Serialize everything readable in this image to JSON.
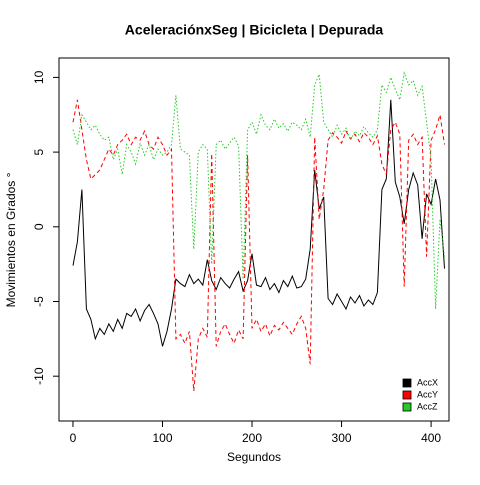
{
  "chart_data": {
    "type": "line",
    "title": "AceleraciónxSeg | Bicicleta | Depurada",
    "xlabel": "Segundos",
    "ylabel": "Movimientos en Grados °",
    "x": [
      0,
      5,
      10,
      15,
      20,
      25,
      30,
      35,
      40,
      45,
      50,
      55,
      60,
      65,
      70,
      75,
      80,
      85,
      90,
      95,
      100,
      105,
      110,
      115,
      120,
      125,
      130,
      135,
      140,
      145,
      150,
      155,
      160,
      165,
      170,
      175,
      180,
      185,
      190,
      195,
      200,
      205,
      210,
      215,
      220,
      225,
      230,
      235,
      240,
      245,
      250,
      255,
      260,
      265,
      270,
      275,
      280,
      285,
      290,
      295,
      300,
      305,
      310,
      315,
      320,
      325,
      330,
      335,
      340,
      345,
      350,
      355,
      360,
      365,
      370,
      375,
      380,
      385,
      390,
      395,
      400,
      405,
      410,
      415
    ],
    "series": [
      {
        "name": "AccX",
        "color": "#000000",
        "linestyle": "solid",
        "values": [
          -2.6,
          -1.0,
          2.5,
          -5.5,
          -6.2,
          -7.5,
          -6.8,
          -7.2,
          -6.5,
          -7.0,
          -6.2,
          -6.8,
          -5.8,
          -6.0,
          -5.5,
          -6.3,
          -5.6,
          -5.2,
          -5.8,
          -6.5,
          -8.0,
          -7.0,
          -5.5,
          -3.5,
          -3.8,
          -4.0,
          -3.2,
          -3.8,
          -3.5,
          -3.9,
          -2.2,
          -3.6,
          -4.2,
          -3.4,
          -3.8,
          -4.1,
          -3.5,
          -3.0,
          -4.3,
          -3.6,
          -1.8,
          -3.9,
          -4.0,
          -3.4,
          -4.2,
          -3.8,
          -4.4,
          -3.6,
          -4.0,
          -3.3,
          -4.1,
          -4.0,
          -3.5,
          -1.5,
          3.8,
          1.2,
          2.0,
          -4.8,
          -5.2,
          -4.5,
          -5.0,
          -5.5,
          -4.7,
          -5.1,
          -4.6,
          -5.3,
          -4.9,
          -5.2,
          -4.4,
          2.5,
          3.2,
          8.5,
          3.0,
          2.0,
          0.2,
          2.5,
          3.6,
          2.8,
          -0.8,
          2.2,
          1.5,
          3.2,
          1.8,
          -2.8
        ]
      },
      {
        "name": "AccY",
        "color": "#ff0000",
        "linestyle": "dashed",
        "values": [
          7.0,
          8.5,
          6.5,
          4.5,
          3.2,
          3.5,
          3.8,
          4.5,
          5.2,
          4.8,
          5.5,
          5.8,
          6.2,
          5.5,
          6.0,
          5.8,
          6.4,
          5.5,
          5.2,
          6.0,
          5.5,
          4.8,
          5.2,
          -7.5,
          -7.2,
          -7.8,
          -7.0,
          -11.0,
          -7.5,
          -6.8,
          -7.4,
          4.9,
          -8.0,
          -7.0,
          -6.5,
          -7.2,
          -7.8,
          -6.9,
          -7.5,
          4.8,
          -6.8,
          -6.2,
          -7.0,
          -6.5,
          -7.3,
          -6.6,
          -6.9,
          -6.4,
          -6.8,
          -7.2,
          -6.5,
          -6.0,
          -6.8,
          -9.2,
          6.0,
          0.5,
          2.5,
          5.8,
          6.3,
          6.0,
          5.6,
          6.4,
          5.9,
          6.2,
          5.7,
          6.3,
          6.0,
          5.5,
          6.1,
          4.2,
          3.5,
          6.5,
          7.0,
          6.2,
          -4.0,
          5.8,
          6.2,
          5.5,
          6.0,
          -2.0,
          5.8,
          6.5,
          7.5,
          5.5
        ]
      },
      {
        "name": "AccZ",
        "color": "#22cc22",
        "linestyle": "dotted",
        "values": [
          6.5,
          5.5,
          7.5,
          7.0,
          6.5,
          6.8,
          6.2,
          5.8,
          6.0,
          4.5,
          5.2,
          3.5,
          5.5,
          5.0,
          4.2,
          5.6,
          4.8,
          5.5,
          4.5,
          5.2,
          4.8,
          5.0,
          5.5,
          8.8,
          5.2,
          5.0,
          4.8,
          -1.5,
          5.0,
          5.5,
          5.2,
          -2.5,
          5.5,
          5.8,
          5.2,
          5.6,
          6.0,
          5.4,
          -3.5,
          6.5,
          7.0,
          6.2,
          7.5,
          6.8,
          6.5,
          7.2,
          6.6,
          6.9,
          6.4,
          7.0,
          6.8,
          6.5,
          7.2,
          6.0,
          9.5,
          10.2,
          7.0,
          6.5,
          6.0,
          6.8,
          6.2,
          6.6,
          5.8,
          6.4,
          6.1,
          6.7,
          6.3,
          6.0,
          6.5,
          9.5,
          9.0,
          10.0,
          9.2,
          8.5,
          10.3,
          9.5,
          9.8,
          8.8,
          9.4,
          7.0,
          4.5,
          -5.5,
          0.5,
          -2.0
        ]
      }
    ],
    "xlim": [
      -15.6,
      420
    ],
    "ylim": [
      -13.0,
      11.3
    ],
    "xticks": [
      0,
      100,
      200,
      300,
      400
    ],
    "yticks": [
      -10,
      -5,
      0,
      5,
      10
    ],
    "legend": "bottomright"
  }
}
